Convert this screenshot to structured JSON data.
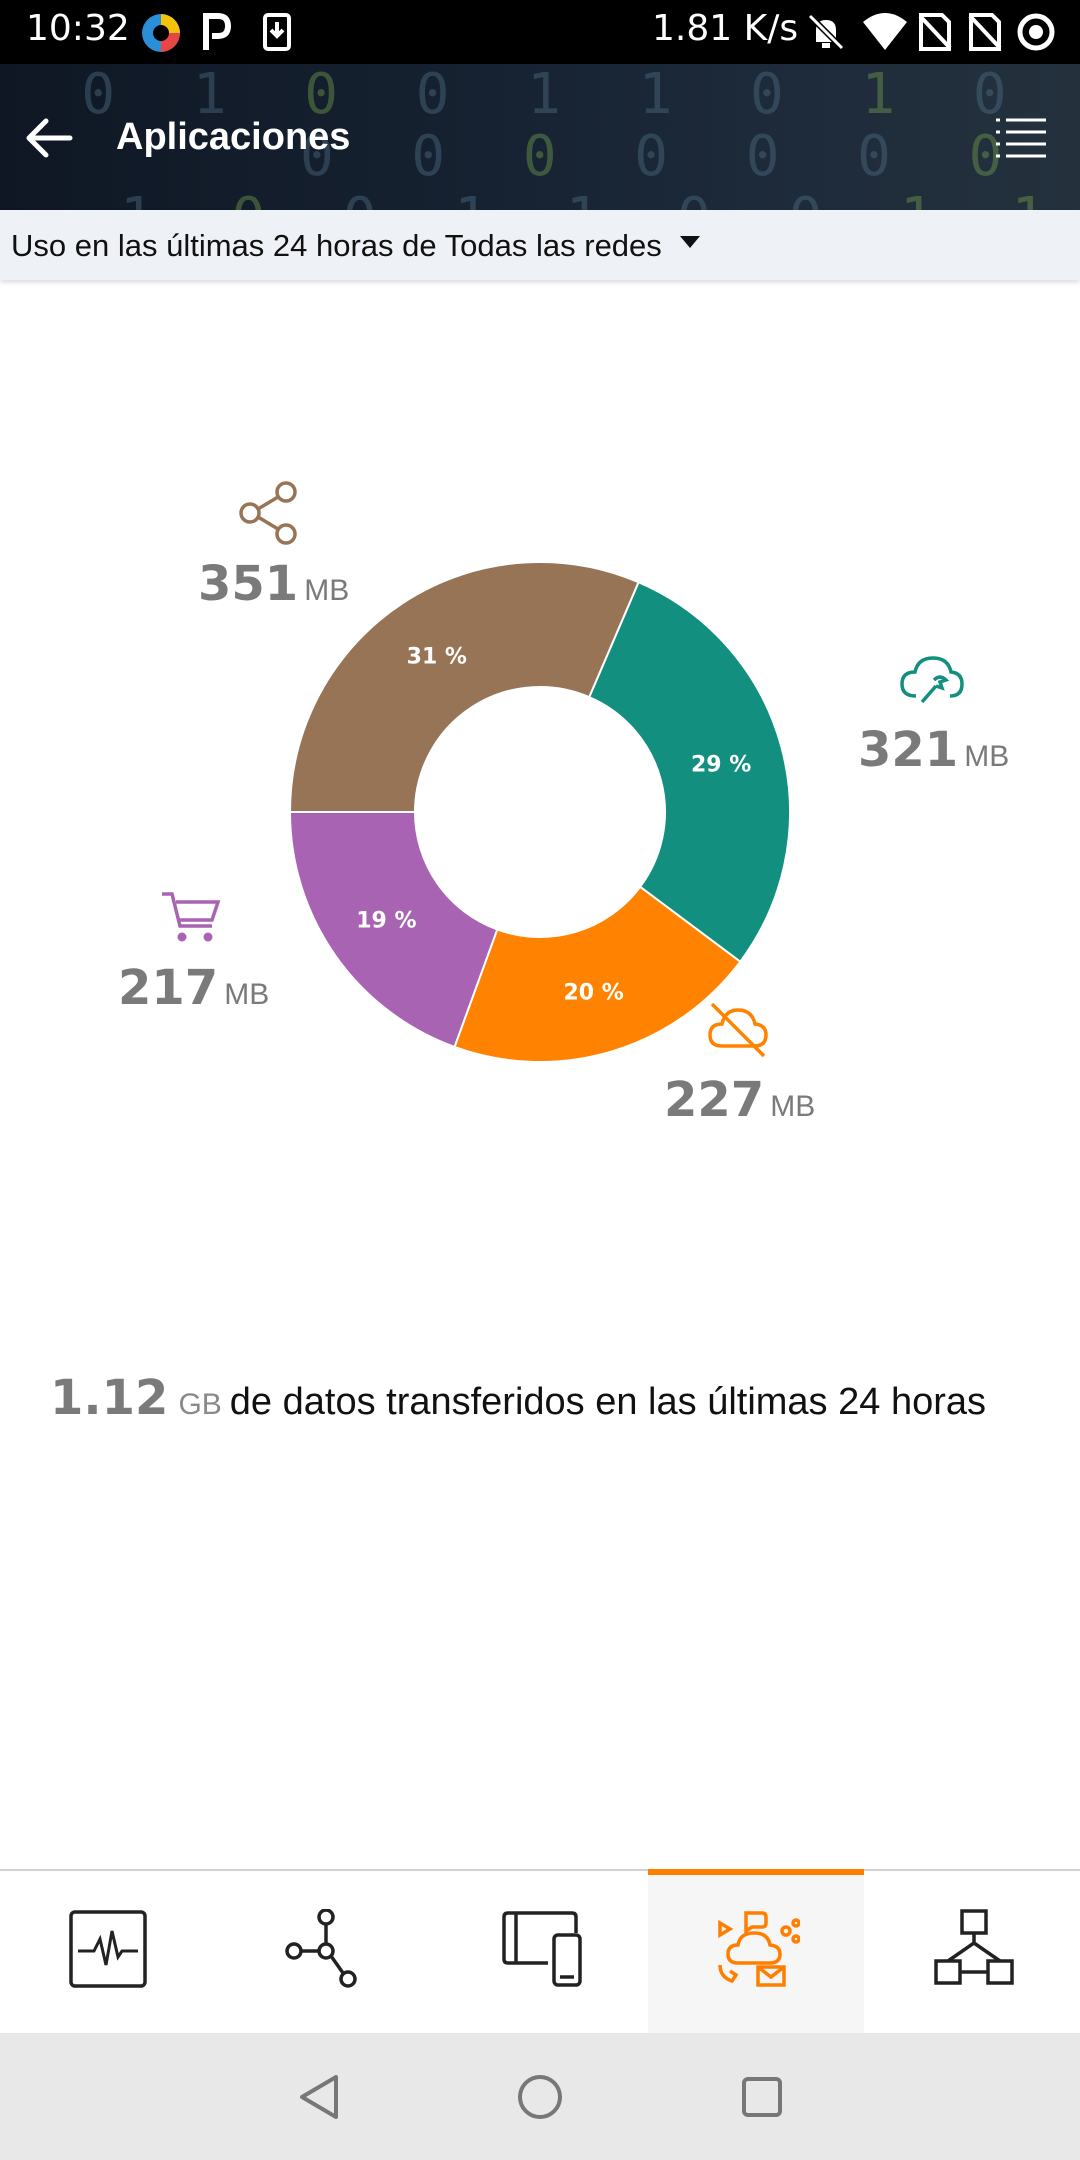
{
  "status_bar": {
    "time": "10:32",
    "network_speed": "1.81 K/s",
    "icons": [
      "app-badge-icon",
      "p-icon",
      "download-icon",
      "bell-off-icon",
      "wifi-icon",
      "no-sim-icon",
      "no-sim-icon",
      "circle-dot-icon"
    ]
  },
  "app_bar": {
    "title": "Aplicaciones",
    "back_icon": "arrow-left-icon",
    "menu_icon": "list-icon"
  },
  "filter": {
    "label": "Uso en las últimas 24 horas de Todas las redes",
    "dropdown_icon": "caret-down-icon"
  },
  "chart_data": {
    "type": "pie",
    "style": "donut",
    "slices": [
      {
        "value_mb": 351,
        "percent": 31,
        "label": "31 %",
        "amount": "351",
        "unit": "MB",
        "color": "#967455",
        "icon": "share-icon"
      },
      {
        "value_mb": 321,
        "percent": 29,
        "label": "29 %",
        "amount": "321",
        "unit": "MB",
        "color": "#128f7e",
        "icon": "cloud-wrench-icon"
      },
      {
        "value_mb": 227,
        "percent": 20,
        "label": "20 %",
        "amount": "227",
        "unit": "MB",
        "color": "#ff8300",
        "icon": "cloud-off-icon"
      },
      {
        "value_mb": 217,
        "percent": 19,
        "label": "19 %",
        "amount": "217",
        "unit": "MB",
        "color": "#a864b2",
        "icon": "cart-icon"
      }
    ]
  },
  "total": {
    "amount": "1.12",
    "unit": "GB",
    "text": "de datos transferidos en las últimas 24 horas"
  },
  "tabs": [
    {
      "icon": "activity-monitor-icon",
      "active": false
    },
    {
      "icon": "network-nodes-icon",
      "active": false
    },
    {
      "icon": "devices-icon",
      "active": false
    },
    {
      "icon": "applications-icon",
      "active": true,
      "accent": "#ff7e00"
    },
    {
      "icon": "topology-icon",
      "active": false
    }
  ],
  "nav": {
    "back_icon": "triangle-back-icon",
    "home_icon": "circle-home-icon",
    "recents_icon": "square-recents-icon"
  }
}
